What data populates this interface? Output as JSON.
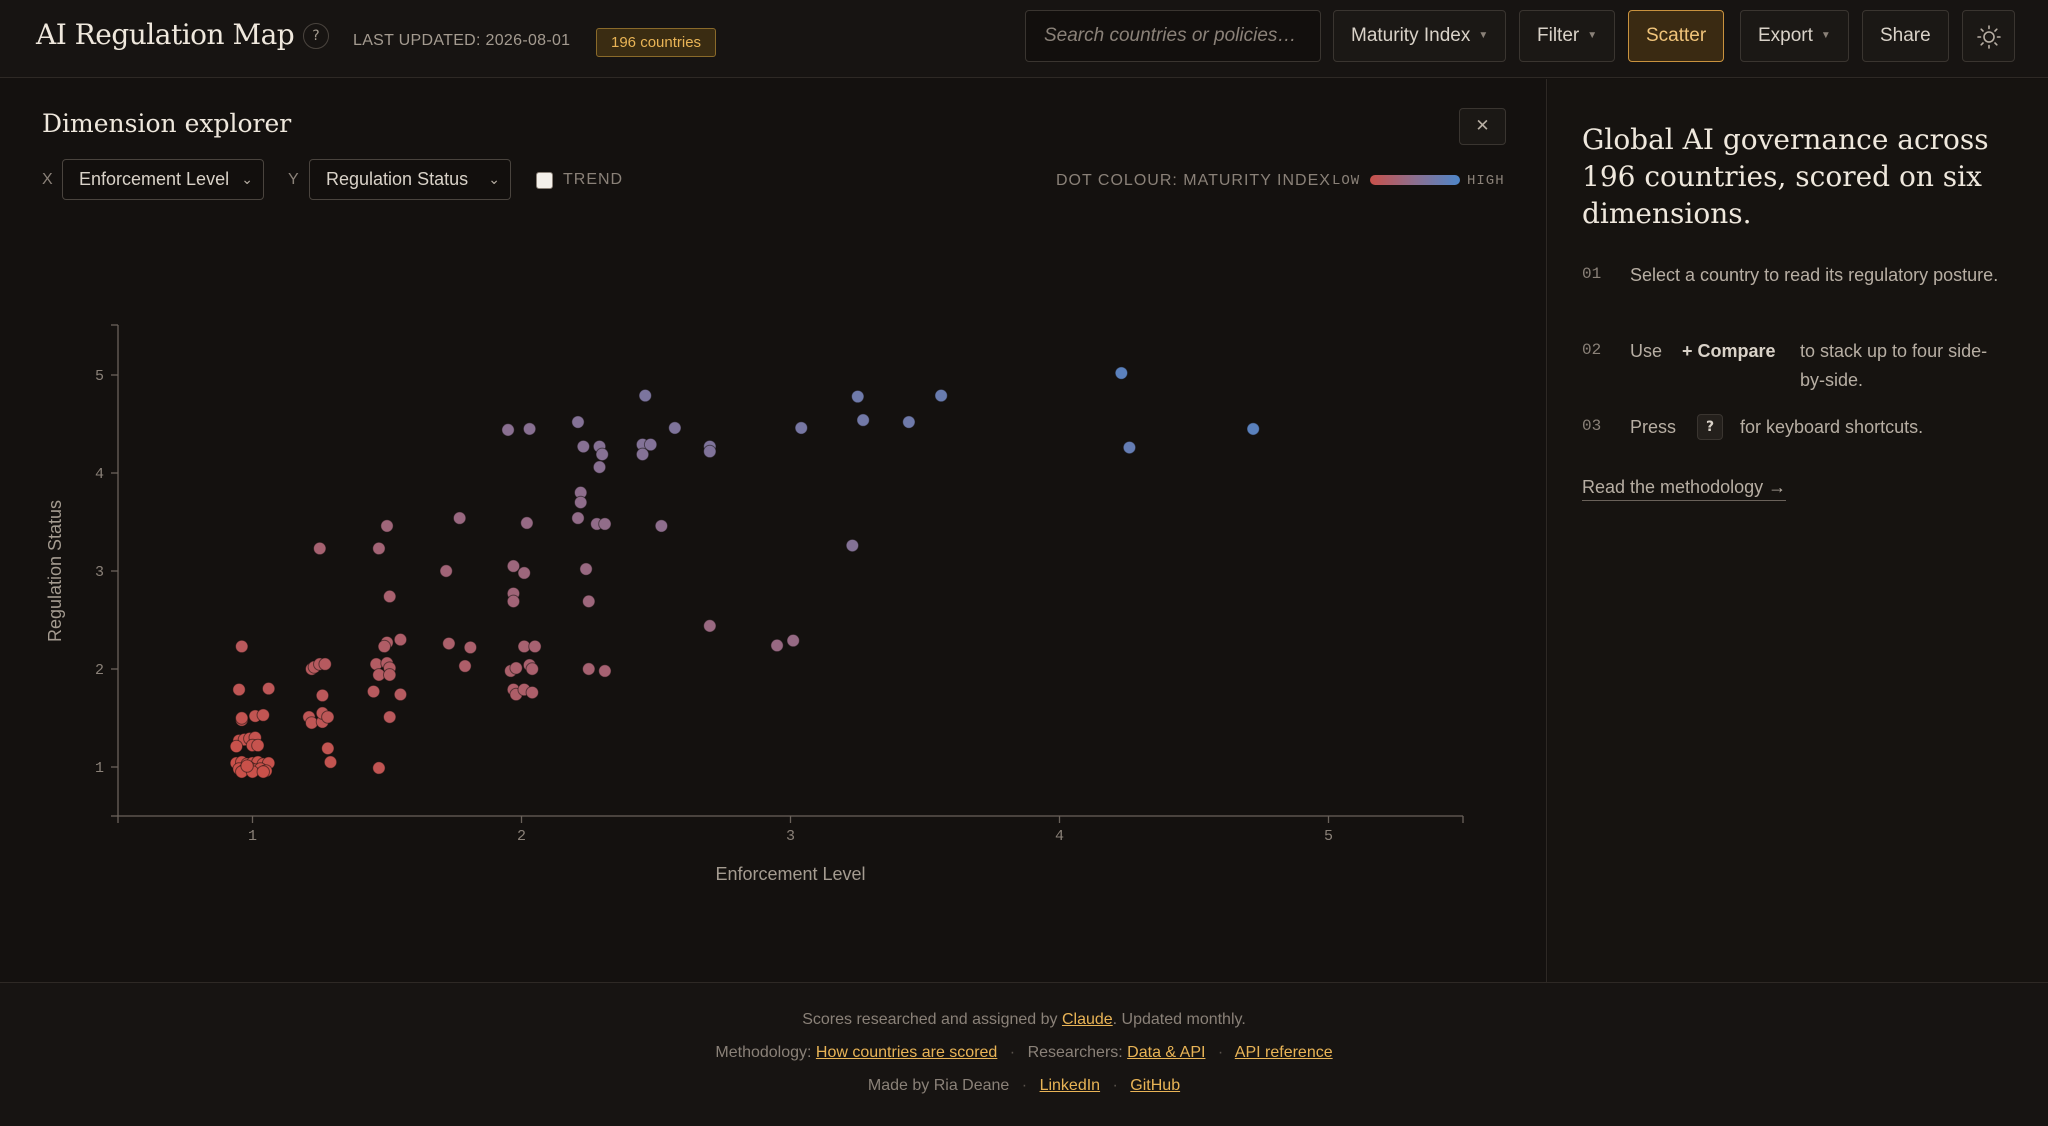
{
  "header": {
    "title": "AI Regulation Map",
    "help_icon": "?",
    "last_updated": "LAST UPDATED: 2026-08-01",
    "country_count": "196 countries",
    "search_placeholder": "Search countries or policies…",
    "metric_select": "Maturity Index",
    "filter_label": "Filter",
    "scatter_label": "Scatter",
    "export_label": "Export",
    "share_label": "Share",
    "theme_icon": "sun-icon"
  },
  "explorer": {
    "title": "Dimension explorer",
    "close": "✕",
    "x_tag": "X",
    "x_value": "Enforcement Level",
    "y_tag": "Y",
    "y_value": "Regulation Status",
    "trend_label": "TREND",
    "legend_title": "DOT COLOUR: MATURITY INDEX",
    "legend_low": "LOW",
    "legend_high": "HIGH",
    "colors": {
      "low": "#c9514a",
      "mid": "#8c6f8f",
      "high": "#4e86c9"
    }
  },
  "chart_data": {
    "type": "scatter",
    "xlabel": "Enforcement Level",
    "ylabel": "Regulation Status",
    "xlim": [
      0.5,
      5.5
    ],
    "ylim": [
      0.5,
      5.5
    ],
    "xticks": [
      1,
      2,
      3,
      4,
      5
    ],
    "yticks": [
      1,
      2,
      3,
      4,
      5
    ],
    "color_by": "Maturity Index",
    "points": [
      [
        4.23,
        5.02
      ],
      [
        4.72,
        4.45
      ],
      [
        4.26,
        4.26
      ],
      [
        3.56,
        4.79
      ],
      [
        3.25,
        4.78
      ],
      [
        3.27,
        4.54
      ],
      [
        3.44,
        4.52
      ],
      [
        3.04,
        4.46
      ],
      [
        3.23,
        3.26
      ],
      [
        2.46,
        4.79
      ],
      [
        2.21,
        4.52
      ],
      [
        2.57,
        4.46
      ],
      [
        2.7,
        4.27
      ],
      [
        2.7,
        4.22
      ],
      [
        2.23,
        4.27
      ],
      [
        2.29,
        4.27
      ],
      [
        2.3,
        4.19
      ],
      [
        2.45,
        4.29
      ],
      [
        2.48,
        4.29
      ],
      [
        2.45,
        4.19
      ],
      [
        2.29,
        4.06
      ],
      [
        1.95,
        4.44
      ],
      [
        2.03,
        4.45
      ],
      [
        2.22,
        3.8
      ],
      [
        2.22,
        3.7
      ],
      [
        2.21,
        3.54
      ],
      [
        2.28,
        3.48
      ],
      [
        2.31,
        3.48
      ],
      [
        2.52,
        3.46
      ],
      [
        2.02,
        3.49
      ],
      [
        1.77,
        3.54
      ],
      [
        1.5,
        3.46
      ],
      [
        1.25,
        3.23
      ],
      [
        1.47,
        3.23
      ],
      [
        2.24,
        3.02
      ],
      [
        1.72,
        3.0
      ],
      [
        1.97,
        3.05
      ],
      [
        2.01,
        2.98
      ],
      [
        1.97,
        2.77
      ],
      [
        1.97,
        2.69
      ],
      [
        2.25,
        2.69
      ],
      [
        1.51,
        2.74
      ],
      [
        2.7,
        2.44
      ],
      [
        3.01,
        2.29
      ],
      [
        2.95,
        2.24
      ],
      [
        1.73,
        2.26
      ],
      [
        1.81,
        2.22
      ],
      [
        2.01,
        2.23
      ],
      [
        2.05,
        2.23
      ],
      [
        1.55,
        2.3
      ],
      [
        1.5,
        2.27
      ],
      [
        1.49,
        2.23
      ],
      [
        1.79,
        2.03
      ],
      [
        1.96,
        1.98
      ],
      [
        1.98,
        2.01
      ],
      [
        2.03,
        2.04
      ],
      [
        2.04,
        2.0
      ],
      [
        2.25,
        2.0
      ],
      [
        2.31,
        1.98
      ],
      [
        1.46,
        2.05
      ],
      [
        1.5,
        2.06
      ],
      [
        1.51,
        2.01
      ],
      [
        1.47,
        1.94
      ],
      [
        1.51,
        1.94
      ],
      [
        1.22,
        2.0
      ],
      [
        1.23,
        2.02
      ],
      [
        1.25,
        2.05
      ],
      [
        1.27,
        2.05
      ],
      [
        1.26,
        1.73
      ],
      [
        1.45,
        1.77
      ],
      [
        1.55,
        1.74
      ],
      [
        1.97,
        1.79
      ],
      [
        1.98,
        1.74
      ],
      [
        2.01,
        1.79
      ],
      [
        2.04,
        1.76
      ],
      [
        1.21,
        1.51
      ],
      [
        1.22,
        1.45
      ],
      [
        1.26,
        1.46
      ],
      [
        1.26,
        1.55
      ],
      [
        1.28,
        1.51
      ],
      [
        1.51,
        1.51
      ],
      [
        1.28,
        1.19
      ],
      [
        1.29,
        1.05
      ],
      [
        1.47,
        0.99
      ],
      [
        0.96,
        2.23
      ],
      [
        0.95,
        1.79
      ],
      [
        1.06,
        1.8
      ],
      [
        0.96,
        1.48
      ],
      [
        0.96,
        1.5
      ],
      [
        1.01,
        1.52
      ],
      [
        1.04,
        1.53
      ],
      [
        0.95,
        1.27
      ],
      [
        0.97,
        1.28
      ],
      [
        0.99,
        1.29
      ],
      [
        1.01,
        1.3
      ],
      [
        0.94,
        1.21
      ],
      [
        1.0,
        1.22
      ],
      [
        1.02,
        1.22
      ],
      [
        0.94,
        1.04
      ],
      [
        0.96,
        1.05
      ],
      [
        0.98,
        1.03
      ],
      [
        1.0,
        1.04
      ],
      [
        1.02,
        1.05
      ],
      [
        1.04,
        1.03
      ],
      [
        1.06,
        1.04
      ],
      [
        0.95,
        0.98
      ],
      [
        0.97,
        0.97
      ],
      [
        0.99,
        0.99
      ],
      [
        1.01,
        0.97
      ],
      [
        1.03,
        0.98
      ],
      [
        1.05,
        0.96
      ],
      [
        0.96,
        0.95
      ],
      [
        1.0,
        0.95
      ],
      [
        1.04,
        0.95
      ],
      [
        0.98,
        1.01
      ]
    ]
  },
  "sidebar": {
    "heading": "Global AI governance across 196 countries, scored on six dimensions.",
    "steps": [
      {
        "num": "01",
        "text": "Select a country to read its regulatory posture."
      },
      {
        "num": "02",
        "pre": "Use",
        "bold": "+ Compare",
        "post": "to stack up to four side-by-side."
      },
      {
        "num": "03",
        "pre": "Press",
        "key": "?",
        "post": "for keyboard shortcuts."
      }
    ],
    "methodology_link": "Read the methodology →"
  },
  "footer": {
    "line1_pre": "Scores researched and assigned by",
    "line1_link": "Claude",
    "line1_post": ". Updated monthly.",
    "methodology_label": "Methodology:",
    "methodology_link": "How countries are scored",
    "researchers_label": "Researchers:",
    "data_api_link": "Data & API",
    "api_ref_link": "API reference",
    "made_by": "Made by Ria Deane",
    "linkedin": "LinkedIn",
    "github": "GitHub",
    "separator": "·"
  }
}
